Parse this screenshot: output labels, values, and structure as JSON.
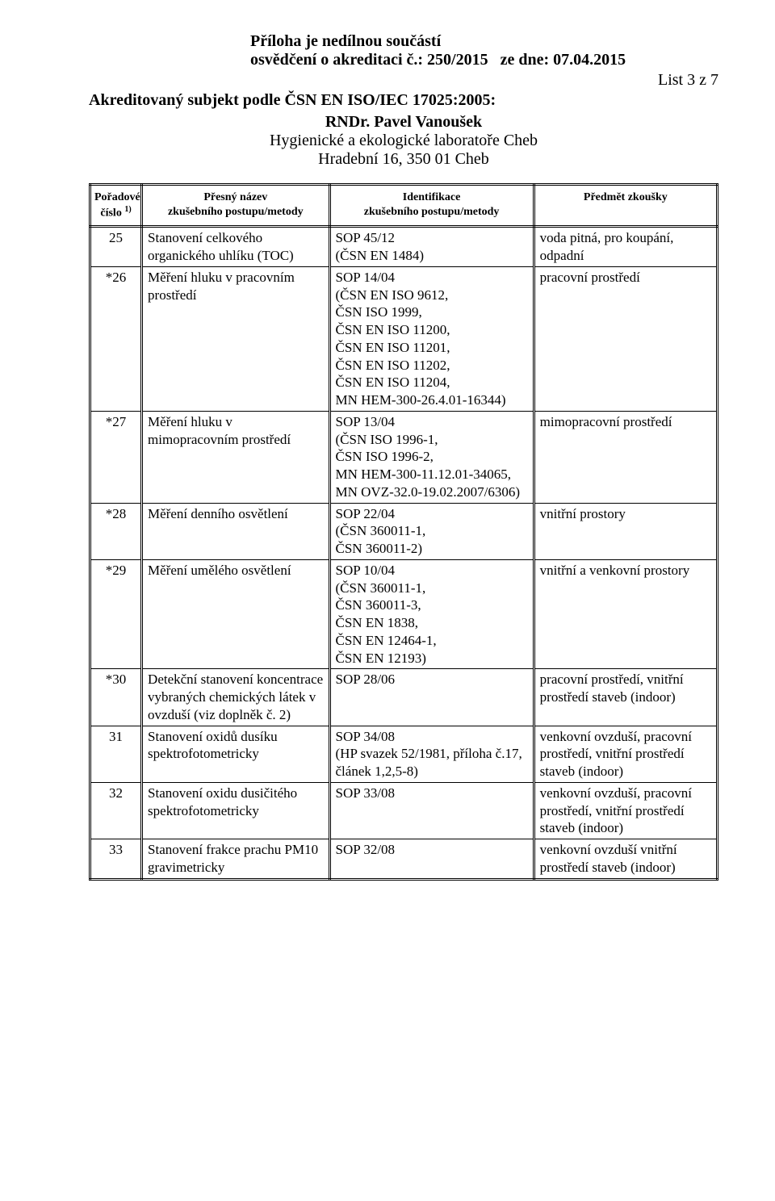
{
  "header": {
    "line1": "Příloha je nedílnou součástí",
    "line2a": "osvědčení o akreditaci č.: 250/2015",
    "line2b": "ze dne: 07.04.2015",
    "list_label": "List 3 z 7",
    "accred": "Akreditovaný subjekt podle ČSN EN ISO/IEC 17025:2005:",
    "rndr": "RNDr. Pavel Vanoušek",
    "lab": "Hygienické a ekologické laboratoře Cheb",
    "addr": "Hradební 16, 350 01  Cheb"
  },
  "columns": {
    "c1a": "Pořadové",
    "c1b": "číslo",
    "c1sup": "1)",
    "c2a": "Přesný název",
    "c2b": "zkušebního postupu/metody",
    "c3a": "Identifikace",
    "c3b": "zkušebního postupu/metody",
    "c4": "Předmět zkoušky"
  },
  "rows": [
    {
      "num": "25",
      "name": "Stanovení celkového organického uhlíku (TOC)",
      "id": "SOP 45/12\n(ČSN EN 1484)",
      "subj": "voda pitná, pro koupání, odpadní"
    },
    {
      "num": "*26",
      "name": "Měření hluku v pracovním prostředí",
      "id": "SOP 14/04\n(ČSN EN ISO 9612,\nČSN ISO 1999,\nČSN EN ISO 11200,\nČSN EN ISO 11201,\nČSN EN ISO 11202,\nČSN EN ISO 11204,\nMN HEM-300-26.4.01-16344)",
      "subj": "pracovní prostředí"
    },
    {
      "num": "*27",
      "name": "Měření hluku v mimopracovním prostředí",
      "id": "SOP 13/04\n(ČSN ISO 1996-1,\nČSN ISO 1996-2,\nMN HEM-300-11.12.01-34065,\nMN OVZ-32.0-19.02.2007/6306)",
      "subj": "mimopracovní prostředí"
    },
    {
      "num": "*28",
      "name": "Měření denního osvětlení",
      "id": "SOP 22/04\n(ČSN 360011-1,\nČSN 360011-2)",
      "subj": "vnitřní prostory"
    },
    {
      "num": "*29",
      "name": "Měření umělého osvětlení",
      "id": "SOP 10/04\n(ČSN 360011-1,\nČSN 360011-3,\nČSN EN 1838,\nČSN EN 12464-1,\nČSN EN 12193)",
      "subj": "vnitřní a venkovní prostory"
    },
    {
      "num": "*30",
      "name": "Detekční stanovení koncentrace vybraných chemických látek v ovzduší (viz doplněk č. 2)",
      "id": "SOP 28/06",
      "subj": "pracovní prostředí, vnitřní prostředí staveb (indoor)"
    },
    {
      "num": "31",
      "name": "Stanovení oxidů dusíku spektrofotometricky",
      "id": "SOP 34/08\n(HP svazek 52/1981, příloha č.17, článek 1,2,5-8)",
      "subj": "venkovní ovzduší, pracovní prostředí, vnitřní prostředí staveb (indoor)"
    },
    {
      "num": "32",
      "name": "Stanovení oxidu dusičitého spektrofotometricky",
      "id": "SOP 33/08",
      "subj": "venkovní ovzduší, pracovní prostředí, vnitřní prostředí staveb (indoor)"
    },
    {
      "num": "33",
      "name": "Stanovení frakce prachu PM10  gravimetricky",
      "id": "SOP 32/08",
      "subj": "venkovní ovzduší vnitřní prostředí staveb (indoor)"
    }
  ]
}
